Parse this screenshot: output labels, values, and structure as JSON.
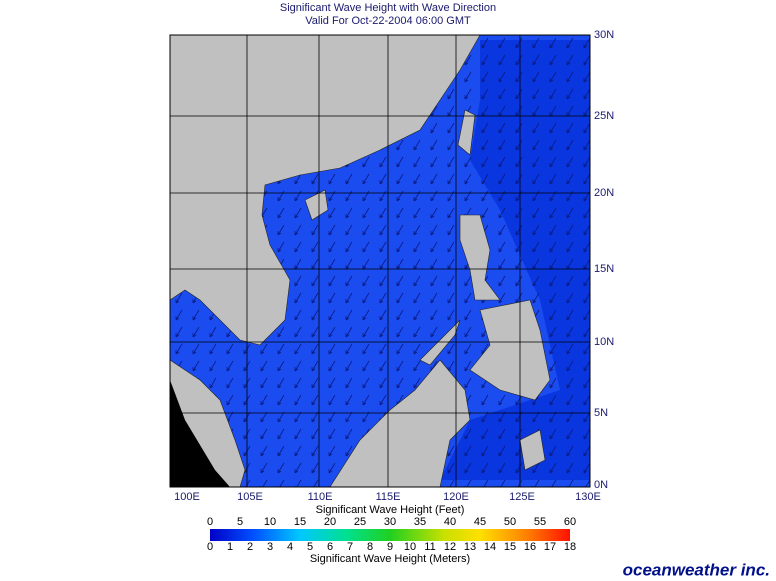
{
  "header": {
    "title": "Significant Wave Height with Wave Direction",
    "subtitle": "Valid For Oct-22-2004 06:00 GMT"
  },
  "map": {
    "lon_labels": [
      "100E",
      "105E",
      "110E",
      "115E",
      "120E",
      "125E",
      "130E"
    ],
    "lat_labels": [
      "30N",
      "25N",
      "20N",
      "15N",
      "10N",
      "5N",
      "0N"
    ]
  },
  "colorbar": {
    "feet_label": "Significant Wave Height (Feet)",
    "feet_ticks": [
      0,
      5,
      10,
      15,
      20,
      25,
      30,
      35,
      40,
      45,
      50,
      55,
      60
    ],
    "meters_label": "Significant Wave Height (Meters)",
    "meters_ticks": [
      0,
      1,
      2,
      3,
      4,
      5,
      6,
      7,
      8,
      9,
      10,
      11,
      12,
      13,
      14,
      15,
      16,
      17,
      18
    ]
  },
  "logo": "oceanweather inc."
}
